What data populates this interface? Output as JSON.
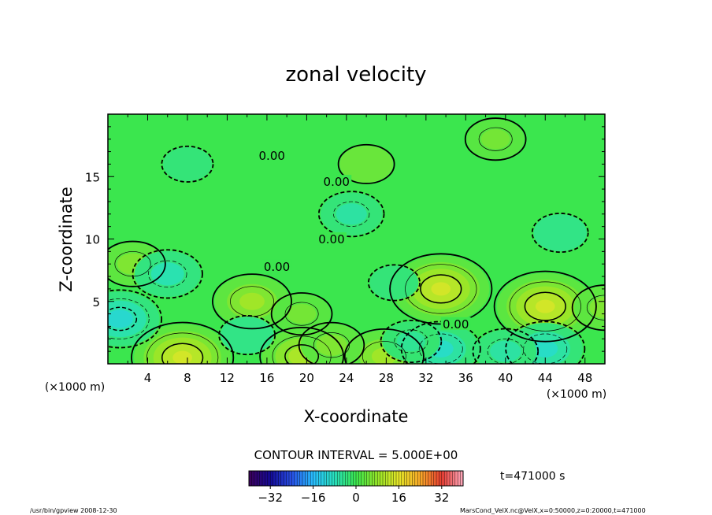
{
  "chart_data": {
    "type": "heatmap",
    "title": "zonal velocity",
    "xlabel": "X-coordinate",
    "ylabel": "Z-coordinate",
    "x_unit_label": "(×1000 m)",
    "y_unit_label": "(×1000 m)",
    "xlim": [
      0,
      50
    ],
    "ylim": [
      0,
      20
    ],
    "x_ticks": [
      4,
      8,
      12,
      16,
      20,
      24,
      28,
      32,
      36,
      40,
      44,
      48
    ],
    "y_ticks": [
      5,
      10,
      15
    ],
    "contour_interval_text": "CONTOUR INTERVAL = 5.000E+00",
    "time_text": "t=471000 s",
    "colorbar": {
      "range": [
        -40,
        40
      ],
      "ticks": [
        -32,
        -16,
        0,
        16,
        32
      ],
      "colormap": "rainbow"
    },
    "contour_zero_label": "0.00",
    "zero_contour_label_positions": [
      {
        "x": 16.5,
        "z": 16.6
      },
      {
        "x": 23.0,
        "z": 14.5
      },
      {
        "x": 22.5,
        "z": 9.9
      },
      {
        "x": 17.0,
        "z": 7.7
      },
      {
        "x": 35.0,
        "z": 3.1
      }
    ],
    "features": [
      {
        "x": 33.5,
        "z": 6.0,
        "value": 14
      },
      {
        "x": 44.0,
        "z": 4.6,
        "value": 14
      },
      {
        "x": 7.5,
        "z": 0.5,
        "value": 14
      },
      {
        "x": 14.5,
        "z": 5.0,
        "value": 9
      },
      {
        "x": 19.5,
        "z": 0.6,
        "value": 10
      },
      {
        "x": 27.8,
        "z": 0.6,
        "value": 9
      },
      {
        "x": 22.5,
        "z": 1.5,
        "value": 6
      },
      {
        "x": 2.5,
        "z": 8.0,
        "value": 6
      },
      {
        "x": 19.5,
        "z": 4.0,
        "value": 5
      },
      {
        "x": 50.0,
        "z": 4.5,
        "value": 6
      },
      {
        "x": 39.0,
        "z": 18.0,
        "value": 5
      },
      {
        "x": 26.0,
        "z": 16.0,
        "value": 4
      },
      {
        "x": 24.5,
        "z": 12.0,
        "value": -6
      },
      {
        "x": 6.0,
        "z": 7.2,
        "value": -7
      },
      {
        "x": 1.2,
        "z": 3.6,
        "value": -10
      },
      {
        "x": 33.5,
        "z": 1.2,
        "value": -9
      },
      {
        "x": 44.0,
        "z": 1.2,
        "value": -9
      },
      {
        "x": 45.5,
        "z": 10.5,
        "value": -4
      },
      {
        "x": 8.0,
        "z": 16.0,
        "value": -3
      },
      {
        "x": 28.8,
        "z": 6.5,
        "value": -3
      },
      {
        "x": 14.0,
        "z": 2.3,
        "value": -4
      },
      {
        "x": 40.0,
        "z": 1.0,
        "value": -6
      },
      {
        "x": 30.5,
        "z": 1.8,
        "value": -5
      }
    ]
  },
  "footer": {
    "left": "/usr/bin/gpview   2008-12-30",
    "right": "MarsCond_VelX.nc@VelX,x=0:50000,z=0:20000,t=471000"
  }
}
